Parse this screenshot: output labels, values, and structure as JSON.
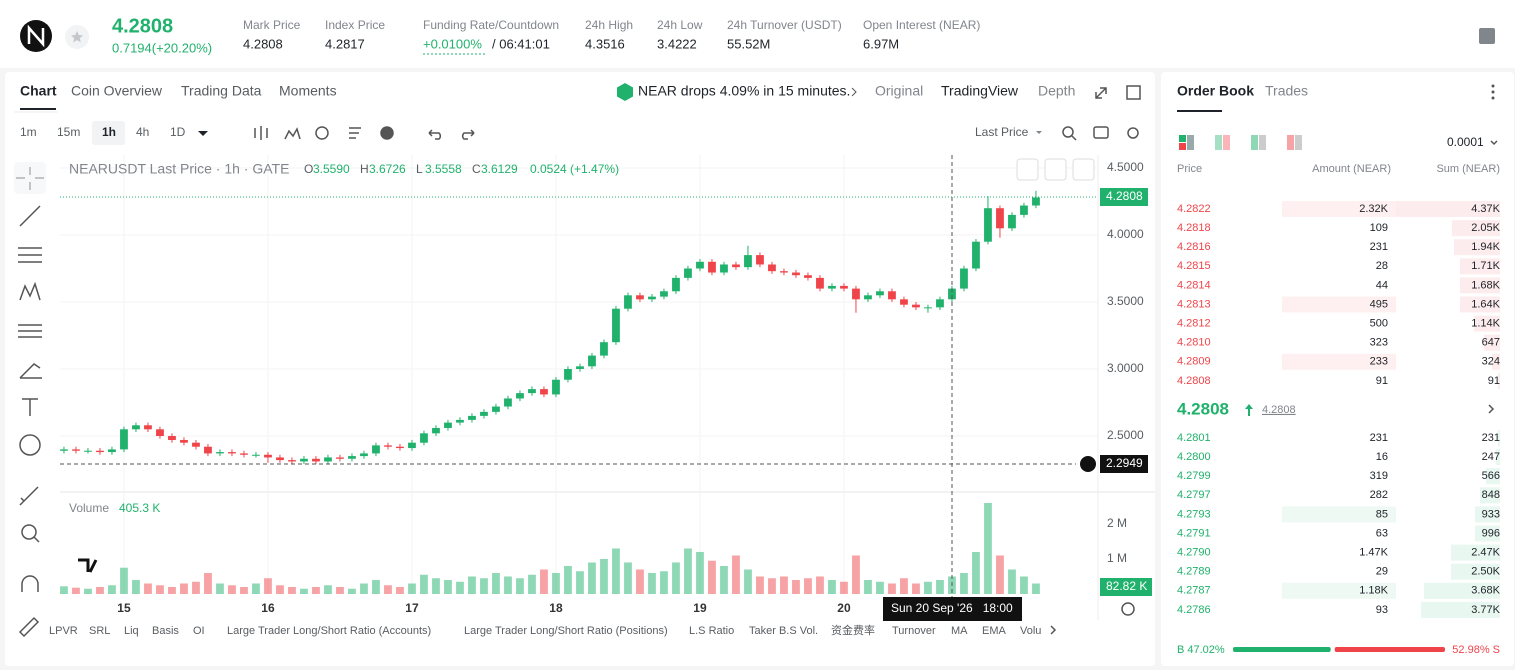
{
  "header": {
    "price": "4.2808",
    "change": "0.7194(+20.20%)",
    "stats": [
      {
        "label": "Mark Price",
        "value": "4.2808"
      },
      {
        "label": "Index Price",
        "value": "4.2817"
      },
      {
        "label": "Funding Rate/Countdown",
        "value": "+0.0100%",
        "extra": "/ 06:41:01"
      },
      {
        "label": "24h High",
        "value": "4.3516"
      },
      {
        "label": "24h Low",
        "value": "3.4222"
      },
      {
        "label": "24h Turnover (USDT)",
        "value": "55.52M"
      },
      {
        "label": "Open Interest (NEAR)",
        "value": "6.97M"
      }
    ]
  },
  "tabs": [
    "Chart",
    "Coin Overview",
    "Trading Data",
    "Moments"
  ],
  "news": "NEAR drops 4.09% in 15 minutes.",
  "views": [
    "Original",
    "TradingView",
    "Depth"
  ],
  "intervals": [
    "1m",
    "15m",
    "1h",
    "4h",
    "1D"
  ],
  "price_source": "Last Price",
  "legend": {
    "title": "NEARUSDT Last Price · 1h · GATE",
    "items": [
      {
        "key": "O",
        "value": "3.5590"
      },
      {
        "key": "H",
        "value": "3.6726"
      },
      {
        "key": "L",
        "value": "3.5558"
      },
      {
        "key": "C",
        "value": "3.6129"
      }
    ],
    "change": "0.0524 (+1.47%)"
  },
  "volume_legend": {
    "label": "Volume",
    "value": "405.3 K"
  },
  "price_tag": "4.2808",
  "crosshair_price": "2.2949",
  "volume_tag": "82.82 K",
  "crosshair_time": "Sun 20 Sep '26   18:00",
  "indicators": [
    "LPVR",
    "SRL",
    "Liq",
    "Basis",
    "OI",
    "Large Trader Long/Short Ratio (Accounts)",
    "Large Trader Long/Short Ratio (Positions)",
    "L.S Ratio",
    "Taker B.S Vol.",
    "资金费率",
    "Turnover",
    "MA",
    "EMA",
    "Volu"
  ],
  "chart_data": {
    "type": "candlestick",
    "up_color": "#20b26c",
    "down_color": "#ef454a",
    "xlim": [
      -0.33,
      86.17
    ],
    "xticks": [
      {
        "value": 5,
        "label": "15"
      },
      {
        "value": 17,
        "label": "16"
      },
      {
        "value": 29,
        "label": "17"
      },
      {
        "value": 41,
        "label": "18"
      },
      {
        "value": 53,
        "label": "19"
      },
      {
        "value": 65,
        "label": "20"
      }
    ],
    "ylim": [
      2.097,
      4.597
    ],
    "yticks": [
      {
        "value": 4.5,
        "label": "4.5000"
      },
      {
        "value": 4,
        "label": "4.0000"
      },
      {
        "value": 3.5,
        "label": "3.5000"
      },
      {
        "value": 3,
        "label": "3.0000"
      },
      {
        "value": 2.5,
        "label": "2.5000"
      }
    ],
    "open": [
      2.39,
      2.4,
      2.39,
      2.39,
      2.38,
      2.4,
      2.55,
      2.58,
      2.55,
      2.5,
      2.47,
      2.45,
      2.42,
      2.37,
      2.38,
      2.37,
      2.36,
      2.36,
      2.34,
      2.32,
      2.31,
      2.33,
      2.31,
      2.34,
      2.33,
      2.35,
      2.37,
      2.43,
      2.42,
      2.41,
      2.45,
      2.52,
      2.56,
      2.6,
      2.62,
      2.65,
      2.68,
      2.72,
      2.78,
      2.82,
      2.85,
      2.81,
      2.92,
      3.0,
      3.02,
      3.1,
      3.2,
      3.45,
      3.55,
      3.52,
      3.54,
      3.58,
      3.68,
      3.75,
      3.8,
      3.72,
      3.78,
      3.76,
      3.85,
      3.78,
      3.73,
      3.72,
      3.7,
      3.68,
      3.6,
      3.62,
      3.6,
      3.52,
      3.55,
      3.58,
      3.52,
      3.48,
      3.46,
      3.46,
      3.52,
      3.6,
      3.75,
      3.95,
      4.2,
      4.05,
      4.15,
      4.22
    ],
    "high": [
      2.42,
      2.42,
      2.41,
      2.41,
      2.42,
      2.57,
      2.6,
      2.6,
      2.57,
      2.52,
      2.49,
      2.47,
      2.44,
      2.4,
      2.4,
      2.39,
      2.38,
      2.38,
      2.36,
      2.34,
      2.35,
      2.35,
      2.36,
      2.36,
      2.37,
      2.39,
      2.45,
      2.45,
      2.44,
      2.47,
      2.54,
      2.58,
      2.62,
      2.64,
      2.67,
      2.7,
      2.74,
      2.8,
      2.84,
      2.87,
      2.87,
      2.94,
      3.02,
      3.04,
      3.12,
      3.22,
      3.47,
      3.57,
      3.57,
      3.56,
      3.6,
      3.7,
      3.77,
      3.82,
      3.82,
      3.8,
      3.8,
      3.92,
      3.87,
      3.8,
      3.75,
      3.74,
      3.72,
      3.7,
      3.64,
      3.64,
      3.62,
      3.57,
      3.6,
      3.6,
      3.54,
      3.5,
      3.48,
      3.54,
      3.62,
      3.77,
      3.97,
      4.29,
      4.22,
      4.17,
      4.24,
      4.33
    ],
    "low": [
      2.37,
      2.37,
      2.37,
      2.36,
      2.36,
      2.38,
      2.53,
      2.53,
      2.48,
      2.45,
      2.43,
      2.4,
      2.35,
      2.35,
      2.35,
      2.34,
      2.34,
      2.3,
      2.3,
      2.29,
      2.29,
      2.29,
      2.29,
      2.31,
      2.31,
      2.33,
      2.35,
      2.4,
      2.39,
      2.39,
      2.43,
      2.5,
      2.54,
      2.58,
      2.6,
      2.63,
      2.66,
      2.7,
      2.76,
      2.8,
      2.79,
      2.79,
      2.9,
      2.98,
      3.0,
      3.08,
      3.18,
      3.43,
      3.5,
      3.5,
      3.52,
      3.56,
      3.66,
      3.73,
      3.7,
      3.7,
      3.74,
      3.74,
      3.76,
      3.71,
      3.7,
      3.68,
      3.66,
      3.58,
      3.58,
      3.58,
      3.42,
      3.5,
      3.53,
      3.5,
      3.46,
      3.44,
      3.42,
      3.44,
      3.5,
      3.58,
      3.73,
      3.93,
      3.98,
      4.03,
      4.13,
      4.2
    ],
    "close": [
      2.4,
      2.39,
      2.39,
      2.38,
      2.4,
      2.55,
      2.58,
      2.55,
      2.5,
      2.47,
      2.45,
      2.42,
      2.37,
      2.38,
      2.37,
      2.36,
      2.36,
      2.34,
      2.32,
      2.31,
      2.33,
      2.31,
      2.34,
      2.33,
      2.35,
      2.37,
      2.43,
      2.42,
      2.41,
      2.45,
      2.52,
      2.56,
      2.6,
      2.62,
      2.65,
      2.68,
      2.72,
      2.78,
      2.82,
      2.85,
      2.81,
      2.92,
      3.0,
      3.02,
      3.1,
      3.2,
      3.45,
      3.55,
      3.52,
      3.54,
      3.58,
      3.68,
      3.75,
      3.8,
      3.72,
      3.78,
      3.76,
      3.85,
      3.78,
      3.73,
      3.72,
      3.7,
      3.68,
      3.6,
      3.62,
      3.6,
      3.52,
      3.55,
      3.58,
      3.52,
      3.48,
      3.46,
      3.46,
      3.52,
      3.6,
      3.75,
      3.95,
      4.2,
      4.05,
      4.15,
      4.22,
      4.28
    ],
    "volume": {
      "ylim": [
        0,
        2.77
      ],
      "yticks": [
        {
          "value": 2,
          "label": "2 M"
        },
        {
          "value": 1,
          "label": "1 M"
        }
      ],
      "values": [
        0.22,
        0.18,
        0.15,
        0.2,
        0.25,
        0.75,
        0.4,
        0.3,
        0.25,
        0.2,
        0.3,
        0.35,
        0.6,
        0.3,
        0.25,
        0.2,
        0.3,
        0.45,
        0.25,
        0.2,
        0.15,
        0.2,
        0.25,
        0.2,
        0.15,
        0.3,
        0.4,
        0.25,
        0.2,
        0.3,
        0.55,
        0.45,
        0.4,
        0.35,
        0.5,
        0.45,
        0.6,
        0.5,
        0.45,
        0.55,
        0.7,
        0.6,
        0.8,
        0.65,
        0.9,
        1.0,
        1.3,
        0.9,
        0.7,
        0.6,
        0.65,
        0.9,
        1.3,
        1.2,
        0.95,
        0.8,
        1.1,
        0.7,
        0.5,
        0.45,
        0.5,
        0.4,
        0.45,
        0.5,
        0.4,
        0.35,
        1.1,
        0.4,
        0.35,
        0.3,
        0.45,
        0.3,
        0.35,
        0.4,
        0.5,
        0.6,
        1.2,
        2.6,
        1.1,
        0.7,
        0.5,
        0.3
      ]
    }
  },
  "order_book": {
    "tabs": [
      "Order Book",
      "Trades"
    ],
    "precision": "0.0001",
    "columns": [
      "Price",
      "Amount (NEAR)",
      "Sum (NEAR)"
    ],
    "asks": [
      [
        "4.2822",
        "2.32K",
        "4.37K"
      ],
      [
        "4.2818",
        "109",
        "2.05K"
      ],
      [
        "4.2816",
        "231",
        "1.94K"
      ],
      [
        "4.2815",
        "28",
        "1.71K"
      ],
      [
        "4.2814",
        "44",
        "1.68K"
      ],
      [
        "4.2813",
        "495",
        "1.64K"
      ],
      [
        "4.2812",
        "500",
        "1.14K"
      ],
      [
        "4.2810",
        "323",
        "647"
      ],
      [
        "4.2809",
        "233",
        "324"
      ],
      [
        "4.2808",
        "91",
        "91"
      ]
    ],
    "last": "4.2808",
    "mark": "4.2808",
    "bids": [
      [
        "4.2801",
        "231",
        "231"
      ],
      [
        "4.2800",
        "16",
        "247"
      ],
      [
        "4.2799",
        "319",
        "566"
      ],
      [
        "4.2797",
        "282",
        "848"
      ],
      [
        "4.2793",
        "85",
        "933"
      ],
      [
        "4.2791",
        "63",
        "996"
      ],
      [
        "4.2790",
        "1.47K",
        "2.47K"
      ],
      [
        "4.2789",
        "29",
        "2.50K"
      ],
      [
        "4.2787",
        "1.18K",
        "3.68K"
      ],
      [
        "4.2786",
        "93",
        "3.77K"
      ]
    ],
    "buy": {
      "value": 47.02,
      "label": "B 47.02%"
    },
    "sell": {
      "value": 52.98,
      "label": "52.98% S"
    }
  }
}
